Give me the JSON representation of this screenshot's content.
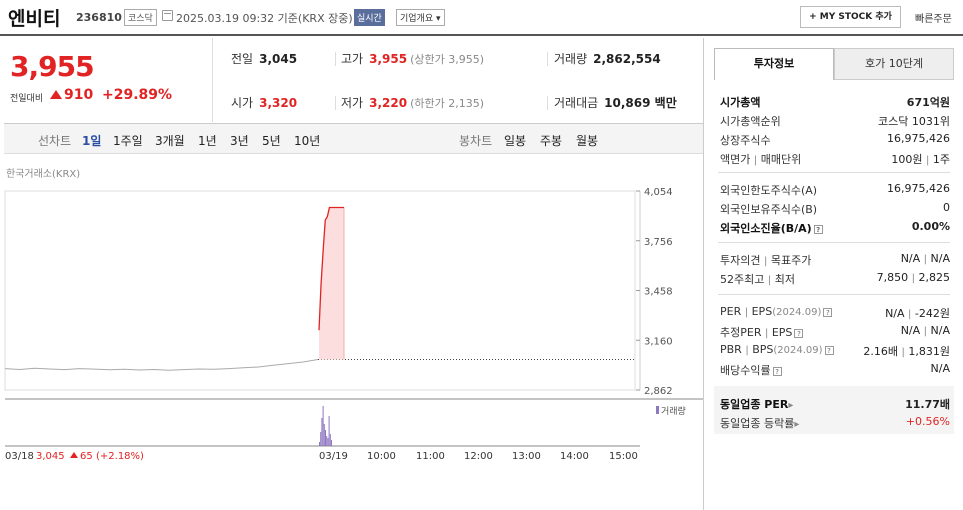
{
  "header": {
    "name": "엔비티",
    "code": "236810",
    "market": "코스닥",
    "datetime": "2025.03.19 09:32 기준(KRX 장중)",
    "realtime": "실시간",
    "company": "기업개요 ▾",
    "mystock": "+ MY STOCK 추가",
    "quick_order": "빠른주문"
  },
  "price": {
    "current": "3,955",
    "change_label": "전일대비",
    "change": "910",
    "change_pct": "+29.89%"
  },
  "stats": {
    "prev_label": "전일",
    "prev": "3,045",
    "high_label": "고가",
    "high": "3,955",
    "upper_label": "(상한가 3,955)",
    "volume_label": "거래량",
    "volume": "2,862,554",
    "open_label": "시가",
    "open": "3,320",
    "low_label": "저가",
    "low": "3,220",
    "lower_label": "(하한가 2,135)",
    "amount_label": "거래대금",
    "amount": "10,869 백만"
  },
  "period_bar": {
    "line_label": "선차트",
    "line_periods": [
      "1일",
      "1주일",
      "3개월",
      "1년",
      "3년",
      "5년",
      "10년"
    ],
    "candle_label": "봉차트",
    "candle_periods": [
      "일봉",
      "주봉",
      "월봉"
    ]
  },
  "chart_source": "한국거래소(KRX)",
  "chart_data": {
    "type": "line",
    "y_ticks": [
      "4,054",
      "3,756",
      "3,458",
      "3,160",
      "2,862"
    ],
    "x_ticks": [
      "03/18",
      "03/19",
      "10:00",
      "11:00",
      "12:00",
      "13:00",
      "14:00",
      "15:00"
    ],
    "prev_day_close": "3,045",
    "prev_day_change": "65",
    "prev_day_change_pct": "(+2.18%)",
    "volume_legend": "거래량",
    "ylim": [
      2862,
      4054
    ],
    "prev_series": [
      2990,
      2985,
      2992,
      2988,
      2984,
      2990,
      2987,
      2983,
      2986,
      2982,
      2985,
      2980,
      2984,
      2988,
      2986,
      2990,
      2995,
      3000,
      3010,
      3020,
      3030,
      3045
    ],
    "today_series": [
      3220,
      3500,
      3700,
      3880,
      3900,
      3955,
      3955,
      3955,
      3955,
      3955,
      3955,
      3955,
      3955
    ]
  },
  "right_panel": {
    "tab_info": "투자정보",
    "tab_orderbook": "호가 10단계",
    "market_cap_label": "시가총액",
    "market_cap": "671억원",
    "market_cap_rank_label": "시가총액순위",
    "market_cap_rank": "코스닥 1031위",
    "listed_shares_label": "상장주식수",
    "listed_shares": "16,975,426",
    "face_value_label": "액면가",
    "trade_unit_label": "매매단위",
    "face_value": "100원",
    "trade_unit": "1주",
    "foreign_limit_label": "외국인한도주식수(A)",
    "foreign_limit": "16,975,426",
    "foreign_hold_label": "외국인보유주식수(B)",
    "foreign_hold": "0",
    "foreign_ratio_label": "외국인소진율(B/A)",
    "foreign_ratio": "0.00%",
    "opinion_label": "투자의견",
    "target_label": "목표주가",
    "opinion": "N/A",
    "target": "N/A",
    "w52_high_label": "52주최고",
    "w52_low_label": "최저",
    "w52_high": "7,850",
    "w52_low": "2,825",
    "per_label": "PER",
    "eps_label": "EPS",
    "eps_period": "(2024.09)",
    "per": "N/A",
    "eps": "-242원",
    "est_per_label": "추정PER",
    "est_eps_label": "EPS",
    "est_per": "N/A",
    "est_eps": "N/A",
    "pbr_label": "PBR",
    "bps_label": "BPS",
    "bps_period": "(2024.09)",
    "pbr": "2.16배",
    "bps": "1,831원",
    "div_label": "배당수익률",
    "div": "N/A",
    "sector_per_label": "동일업종 PER",
    "sector_per": "11.77배",
    "sector_rate_label": "동일업종 등락률",
    "sector_rate": "+0.56%",
    "help_glyph": "?",
    "arrow_glyph": "▸"
  }
}
